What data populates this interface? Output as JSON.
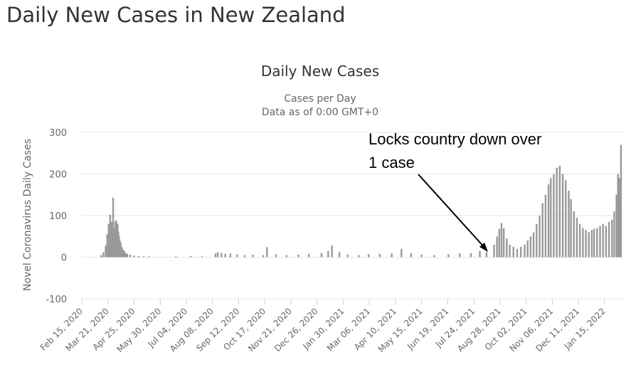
{
  "page": {
    "heading": "Daily New Cases in New Zealand"
  },
  "chart_data": {
    "type": "bar",
    "title": "Daily New Cases",
    "subtitle_lines": [
      "Cases per Day",
      "Data as of 0:00 GMT+0"
    ],
    "xlabel": "",
    "ylabel": "Novel Coronavirus Daily Cases",
    "ylim": [
      -100,
      300
    ],
    "y_ticks": [
      -100,
      0,
      100,
      200,
      300
    ],
    "grid": true,
    "legend": "none",
    "x_start": "2020-02-15",
    "x_end": "2022-02-08",
    "x_tick_labels": [
      "Feb 15, 2020",
      "Mar 21, 2020",
      "Apr 25, 2020",
      "May 30, 2020",
      "Jul 04, 2020",
      "Aug 08, 2020",
      "Sep 12, 2020",
      "Oct 17, 2020",
      "Nov 21, 2020",
      "Dec 26, 2020",
      "Jan 30, 2021",
      "Mar 06, 2021",
      "Apr 10, 2021",
      "May 15, 2021",
      "Jun 19, 2021",
      "Jul 24, 2021",
      "Aug 28, 2021",
      "Oct 02, 2021",
      "Nov 06, 2021",
      "Dec 11, 2021",
      "Jan 15, 2022"
    ],
    "series": [
      {
        "values_by_date": [
          [
            "2020-03-12",
            5
          ],
          [
            "2020-03-15",
            12
          ],
          [
            "2020-03-18",
            28
          ],
          [
            "2020-03-20",
            55
          ],
          [
            "2020-03-22",
            80
          ],
          [
            "2020-03-24",
            102
          ],
          [
            "2020-03-26",
            85
          ],
          [
            "2020-03-27",
            78
          ],
          [
            "2020-03-28",
            143
          ],
          [
            "2020-03-29",
            70
          ],
          [
            "2020-03-30",
            60
          ],
          [
            "2020-03-31",
            85
          ],
          [
            "2020-04-01",
            88
          ],
          [
            "2020-04-02",
            75
          ],
          [
            "2020-04-03",
            80
          ],
          [
            "2020-04-04",
            62
          ],
          [
            "2020-04-05",
            50
          ],
          [
            "2020-04-06",
            40
          ],
          [
            "2020-04-07",
            35
          ],
          [
            "2020-04-08",
            25
          ],
          [
            "2020-04-09",
            22
          ],
          [
            "2020-04-10",
            18
          ],
          [
            "2020-04-12",
            15
          ],
          [
            "2020-04-14",
            10
          ],
          [
            "2020-04-16",
            8
          ],
          [
            "2020-04-20",
            6
          ],
          [
            "2020-04-25",
            4
          ],
          [
            "2020-05-01",
            3
          ],
          [
            "2020-05-08",
            2
          ],
          [
            "2020-05-15",
            2
          ],
          [
            "2020-06-20",
            2
          ],
          [
            "2020-07-10",
            3
          ],
          [
            "2020-07-25",
            2
          ],
          [
            "2020-08-12",
            9
          ],
          [
            "2020-08-15",
            12
          ],
          [
            "2020-08-20",
            10
          ],
          [
            "2020-08-25",
            8
          ],
          [
            "2020-09-01",
            9
          ],
          [
            "2020-09-10",
            7
          ],
          [
            "2020-09-20",
            5
          ],
          [
            "2020-10-01",
            6
          ],
          [
            "2020-10-15",
            5
          ],
          [
            "2020-10-20",
            24
          ],
          [
            "2020-11-01",
            7
          ],
          [
            "2020-11-15",
            5
          ],
          [
            "2020-12-01",
            6
          ],
          [
            "2020-12-15",
            8
          ],
          [
            "2021-01-01",
            10
          ],
          [
            "2021-01-10",
            15
          ],
          [
            "2021-01-15",
            28
          ],
          [
            "2021-01-25",
            12
          ],
          [
            "2021-02-05",
            6
          ],
          [
            "2021-02-20",
            5
          ],
          [
            "2021-03-05",
            7
          ],
          [
            "2021-03-20",
            8
          ],
          [
            "2021-04-05",
            9
          ],
          [
            "2021-04-18",
            20
          ],
          [
            "2021-05-01",
            10
          ],
          [
            "2021-05-15",
            6
          ],
          [
            "2021-06-01",
            5
          ],
          [
            "2021-06-20",
            7
          ],
          [
            "2021-07-05",
            9
          ],
          [
            "2021-07-20",
            10
          ],
          [
            "2021-08-01",
            15
          ],
          [
            "2021-08-10",
            12
          ],
          [
            "2021-08-20",
            30
          ],
          [
            "2021-08-24",
            50
          ],
          [
            "2021-08-27",
            68
          ],
          [
            "2021-08-30",
            82
          ],
          [
            "2021-09-02",
            70
          ],
          [
            "2021-09-06",
            45
          ],
          [
            "2021-09-10",
            30
          ],
          [
            "2021-09-15",
            25
          ],
          [
            "2021-09-20",
            20
          ],
          [
            "2021-09-25",
            25
          ],
          [
            "2021-09-30",
            30
          ],
          [
            "2021-10-04",
            40
          ],
          [
            "2021-10-08",
            50
          ],
          [
            "2021-10-12",
            60
          ],
          [
            "2021-10-16",
            80
          ],
          [
            "2021-10-20",
            100
          ],
          [
            "2021-10-24",
            130
          ],
          [
            "2021-10-28",
            150
          ],
          [
            "2021-11-01",
            175
          ],
          [
            "2021-11-04",
            190
          ],
          [
            "2021-11-08",
            200
          ],
          [
            "2021-11-12",
            215
          ],
          [
            "2021-11-16",
            220
          ],
          [
            "2021-11-20",
            200
          ],
          [
            "2021-11-24",
            185
          ],
          [
            "2021-11-28",
            160
          ],
          [
            "2021-12-01",
            140
          ],
          [
            "2021-12-05",
            110
          ],
          [
            "2021-12-09",
            95
          ],
          [
            "2021-12-13",
            80
          ],
          [
            "2021-12-17",
            70
          ],
          [
            "2021-12-21",
            65
          ],
          [
            "2021-12-25",
            60
          ],
          [
            "2021-12-29",
            65
          ],
          [
            "2022-01-01",
            68
          ],
          [
            "2022-01-05",
            70
          ],
          [
            "2022-01-09",
            75
          ],
          [
            "2022-01-13",
            80
          ],
          [
            "2022-01-17",
            75
          ],
          [
            "2022-01-21",
            85
          ],
          [
            "2022-01-25",
            90
          ],
          [
            "2022-01-28",
            110
          ],
          [
            "2022-01-31",
            150
          ],
          [
            "2022-02-02",
            200
          ],
          [
            "2022-02-04",
            190
          ],
          [
            "2022-02-06",
            270
          ]
        ]
      }
    ],
    "annotation": {
      "text_lines": [
        "Locks country down over",
        "1 case"
      ]
    },
    "colors": {
      "bar": "#999999",
      "grid": "#e6e6e6",
      "axis_text": "#666666",
      "title": "#333333",
      "annotation_arrow": "#000000"
    }
  }
}
